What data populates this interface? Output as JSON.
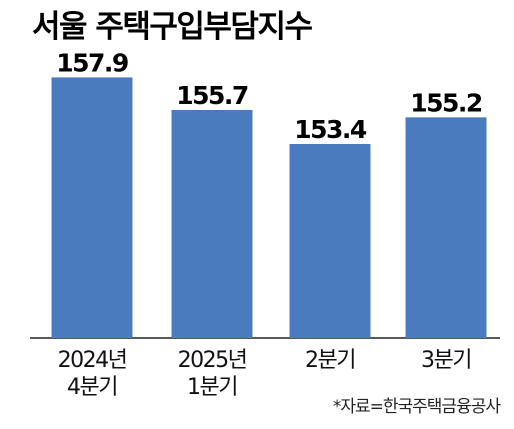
{
  "title": "서울 주택구입부담지수",
  "source": "*자료=한국주택금융공사",
  "colors": {
    "bar": "#4b7bbf",
    "text": "#000000",
    "background": "#ffffff"
  },
  "chart_data": {
    "type": "bar",
    "title": "서울 주택구입부담지수",
    "categories": [
      [
        "2024년",
        "4분기"
      ],
      [
        "2025년",
        "1분기"
      ],
      [
        "2분기"
      ],
      [
        "3분기"
      ]
    ],
    "values": [
      157.9,
      155.7,
      153.4,
      155.2
    ],
    "value_labels": [
      "157.9",
      "155.7",
      "153.4",
      "155.2"
    ],
    "xlabel": "",
    "ylabel": "",
    "grid": false,
    "legend": "none"
  }
}
